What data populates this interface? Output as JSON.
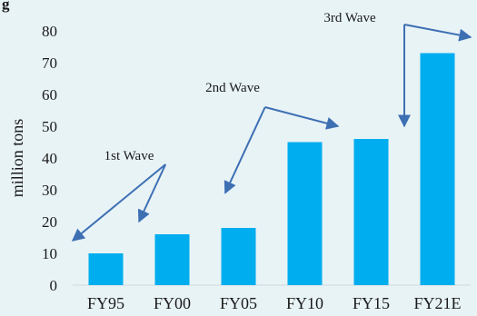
{
  "chart_data": {
    "type": "bar",
    "title": "g",
    "ylabel": "million tons",
    "xlabel": "",
    "categories": [
      "FY95",
      "FY00",
      "FY05",
      "FY10",
      "FY15",
      "FY21E"
    ],
    "values": [
      10,
      16,
      18,
      45,
      46,
      73
    ],
    "ylim": [
      0,
      80
    ],
    "yticks": [
      0,
      10,
      20,
      30,
      40,
      50,
      60,
      70,
      80
    ],
    "grid": false,
    "bar_color": "#00aeef",
    "annotations": [
      {
        "text": "1st Wave",
        "from": [
          1.4,
          38
        ],
        "points_to": [
          [
            0,
            14
          ],
          [
            1,
            20
          ]
        ]
      },
      {
        "text": "2nd Wave",
        "from": [
          2.9,
          56
        ],
        "points_to": [
          [
            2.3,
            29
          ],
          [
            4,
            50
          ]
        ]
      },
      {
        "text": "3rd Wave",
        "from": [
          5.0,
          82
        ],
        "points_to": [
          [
            5.0,
            50
          ],
          [
            6,
            78
          ]
        ]
      }
    ]
  }
}
